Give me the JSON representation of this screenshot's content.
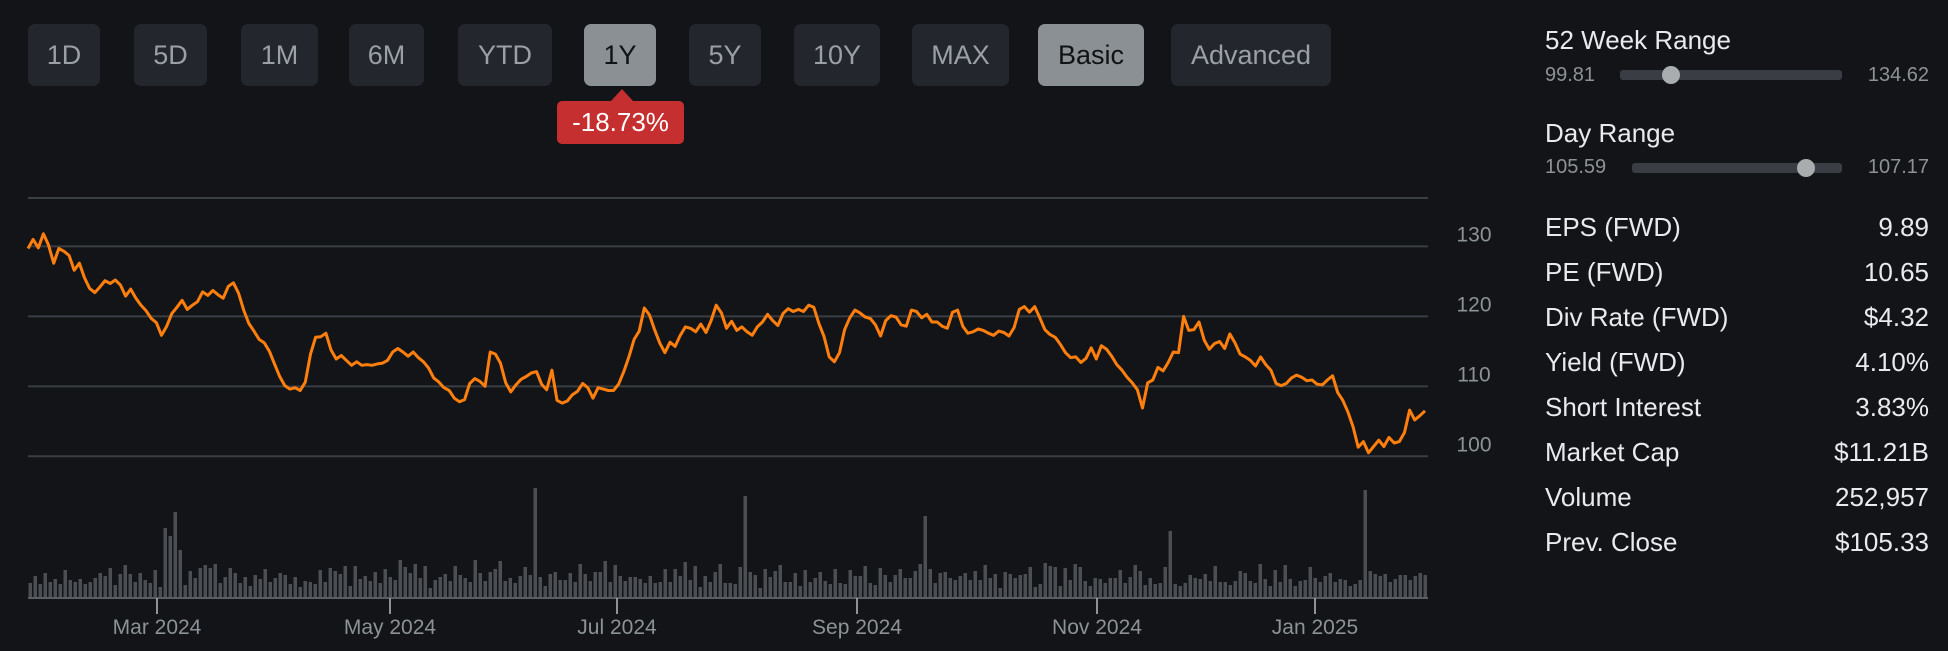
{
  "range_buttons": [
    {
      "label": "1D",
      "active": false
    },
    {
      "label": "5D",
      "active": false
    },
    {
      "label": "1M",
      "active": false
    },
    {
      "label": "6M",
      "active": false
    },
    {
      "label": "YTD",
      "active": false
    },
    {
      "label": "1Y",
      "active": true
    },
    {
      "label": "5Y",
      "active": false
    },
    {
      "label": "10Y",
      "active": false
    },
    {
      "label": "MAX",
      "active": false
    }
  ],
  "mode_buttons": [
    {
      "label": "Basic",
      "active": true
    },
    {
      "label": "Advanced",
      "active": false
    }
  ],
  "change_badge": "-18.73%",
  "colors": {
    "line": "#ff7f0e",
    "volume": "#4b4e52",
    "grid": "#3a3d42",
    "badge": "#c62f2f",
    "background": "#121417"
  },
  "ranges": {
    "week52": {
      "label": "52 Week Range",
      "low": "99.81",
      "high": "134.62",
      "position": 0.23
    },
    "day": {
      "label": "Day Range",
      "low": "105.59",
      "high": "107.17",
      "position": 0.83
    }
  },
  "stats": [
    {
      "label": "EPS (FWD)",
      "value": "9.89"
    },
    {
      "label": "PE (FWD)",
      "value": "10.65"
    },
    {
      "label": "Div Rate (FWD)",
      "value": "$4.32"
    },
    {
      "label": "Yield (FWD)",
      "value": "4.10%"
    },
    {
      "label": "Short Interest",
      "value": "3.83%"
    },
    {
      "label": "Market Cap",
      "value": "$11.21B"
    },
    {
      "label": "Volume",
      "value": "252,957"
    },
    {
      "label": "Prev. Close",
      "value": "$105.33"
    }
  ],
  "chart_data": {
    "type": "line",
    "y_ticks": [
      100,
      110,
      120,
      130
    ],
    "ylim": [
      96.9,
      137.2
    ],
    "x_ticks": [
      "Mar 2024",
      "May 2024",
      "Jul 2024",
      "Sep 2024",
      "Nov 2024",
      "Jan 2025"
    ],
    "grid": true,
    "series": [
      {
        "values": [
          129.7,
          131.0,
          129.8,
          131.8,
          130.2,
          127.6,
          129.7,
          129.3,
          128.7,
          126.6,
          127.6,
          125.5,
          124.0,
          123.4,
          124.2,
          125.1,
          124.7,
          125.2,
          124.5,
          122.9,
          123.9,
          122.6,
          121.6,
          120.8,
          119.7,
          119.1,
          117.3,
          118.6,
          120.4,
          121.3,
          122.3,
          121.0,
          121.6,
          122.1,
          123.5,
          123.0,
          123.7,
          123.1,
          122.6,
          124.3,
          124.8,
          123.3,
          120.9,
          119.0,
          117.9,
          116.7,
          116.2,
          115.0,
          113.2,
          111.4,
          110.1,
          109.6,
          109.8,
          109.4,
          110.6,
          114.6,
          117.0,
          117.1,
          117.6,
          115.2,
          113.9,
          114.4,
          113.7,
          113.0,
          113.5,
          113.0,
          113.1,
          113.0,
          113.2,
          113.3,
          113.7,
          114.9,
          115.4,
          114.9,
          114.3,
          114.9,
          114.1,
          113.5,
          112.6,
          111.2,
          110.6,
          109.8,
          109.4,
          108.3,
          107.8,
          108.1,
          110.4,
          111.1,
          110.7,
          110.0,
          114.9,
          114.6,
          113.3,
          110.5,
          109.2,
          110.2,
          111.0,
          111.4,
          111.9,
          112.1,
          110.3,
          109.5,
          112.3,
          108.0,
          107.6,
          107.9,
          108.8,
          109.3,
          110.4,
          109.8,
          108.3,
          109.8,
          109.6,
          109.4,
          109.4,
          110.3,
          112.1,
          114.2,
          116.7,
          117.9,
          121.2,
          120.2,
          118.1,
          116.2,
          114.8,
          116.3,
          115.7,
          117.3,
          118.5,
          118.3,
          117.8,
          118.9,
          117.7,
          119.4,
          121.6,
          120.5,
          118.3,
          119.3,
          118.0,
          118.5,
          117.8,
          117.3,
          118.5,
          119.2,
          120.3,
          119.4,
          118.7,
          120.4,
          121.1,
          120.7,
          121.0,
          120.7,
          121.6,
          121.3,
          119.0,
          117.1,
          114.2,
          113.5,
          114.8,
          118.1,
          119.8,
          120.9,
          120.5,
          119.9,
          119.7,
          118.8,
          117.2,
          119.4,
          120.1,
          119.9,
          118.8,
          118.6,
          120.9,
          120.7,
          119.8,
          120.3,
          119.2,
          119.2,
          118.6,
          118.3,
          120.6,
          120.9,
          118.6,
          117.6,
          117.8,
          118.2,
          118.0,
          117.6,
          117.3,
          117.9,
          117.7,
          117.2,
          118.4,
          121.0,
          121.4,
          120.6,
          121.4,
          119.8,
          118.1,
          117.4,
          117.0,
          116.0,
          114.8,
          114.1,
          114.2,
          113.4,
          114.0,
          115.5,
          113.9,
          115.8,
          115.3,
          114.3,
          113.1,
          112.3,
          111.3,
          110.5,
          109.5,
          106.9,
          110.5,
          110.9,
          112.7,
          112.2,
          113.4,
          114.9,
          114.8,
          120.0,
          118.0,
          118.1,
          119.2,
          116.6,
          115.3,
          116.1,
          116.4,
          115.4,
          117.5,
          116.2,
          114.6,
          114.2,
          113.7,
          112.9,
          114.2,
          113.1,
          112.3,
          110.4,
          110.1,
          110.4,
          111.2,
          111.6,
          111.3,
          110.8,
          110.9,
          110.3,
          110.2,
          110.9,
          111.5,
          109.1,
          108.0,
          106.3,
          104.2,
          101.3,
          102.1,
          100.5,
          101.4,
          102.3,
          101.4,
          102.7,
          101.9,
          102.1,
          103.4,
          106.6,
          105.2,
          105.8,
          106.5
        ]
      }
    ],
    "volume": [
      15,
      22,
      14,
      25,
      16,
      19,
      14,
      28,
      18,
      16,
      19,
      14,
      16,
      20,
      25,
      22,
      30,
      13,
      24,
      33,
      24,
      16,
      25,
      18,
      15,
      28,
      11,
      70,
      62,
      50,
      48,
      13,
      27,
      20,
      30,
      33,
      30,
      34,
      15,
      21,
      30,
      25,
      15,
      21,
      12,
      23,
      19,
      29,
      16,
      20,
      25,
      23,
      14,
      21,
      11,
      17,
      16,
      14,
      28,
      16,
      30,
      27,
      24,
      32,
      12,
      32,
      19,
      22,
      17,
      26,
      15,
      29,
      21,
      18,
      14,
      31,
      25,
      34,
      20,
      32,
      10,
      18,
      21,
      24,
      17,
      32,
      23,
      20,
      16,
      38,
      25,
      17,
      26,
      29,
      37,
      17,
      20,
      15,
      22,
      31,
      23,
      30,
      21,
      12,
      24,
      26,
      18,
      18,
      25,
      16,
      34,
      24,
      17,
      26,
      26,
      37,
      16,
      33,
      22,
      17,
      21,
      21,
      19,
      15,
      22,
      15,
      16,
      29,
      16,
      29,
      22,
      36,
      18,
      32,
      11,
      22,
      16,
      26,
      34,
      15,
      15,
      14,
      31,
      19,
      26,
      23,
      10,
      29,
      21,
      27,
      33,
      16,
      16,
      25,
      12,
      28,
      16,
      20,
      26,
      17,
      14,
      29,
      15,
      14,
      28,
      22,
      22,
      32,
      15,
      13,
      30,
      23,
      16,
      23,
      29,
      20,
      20,
      27,
      34,
      13,
      29,
      15,
      25,
      26,
      20,
      18,
      22,
      25,
      18,
      27,
      18,
      33,
      20,
      24,
      10,
      26,
      24,
      20,
      23,
      24,
      31,
      11,
      14,
      35,
      32,
      31,
      12,
      30,
      18,
      34,
      31,
      17,
      12,
      20,
      19,
      15,
      20,
      20,
      28,
      15,
      21,
      33,
      27,
      13,
      20,
      14,
      15,
      31,
      34,
      14,
      12,
      15,
      23,
      20,
      19,
      24,
      17,
      32,
      16,
      16,
      13,
      17,
      27,
      25,
      17,
      15,
      34,
      19,
      12,
      28,
      16,
      33,
      19,
      12,
      17,
      18,
      31,
      20,
      16,
      22,
      25,
      16,
      19,
      18,
      12,
      14,
      18,
      11,
      27,
      24,
      22,
      24,
      16,
      19,
      23,
      23,
      18,
      22,
      25,
      23
    ],
    "volume_spikes": {
      "29": 86,
      "74": 38,
      "101": 110,
      "143": 102,
      "179": 82,
      "228": 67,
      "267": 108
    }
  }
}
